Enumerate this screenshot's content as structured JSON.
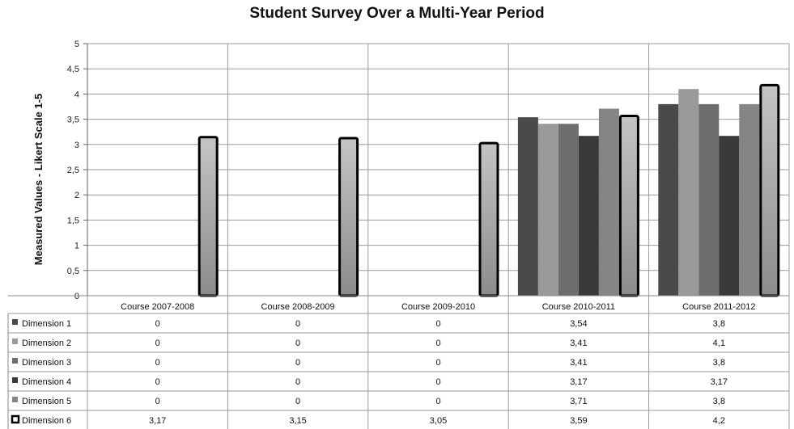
{
  "chart_data": {
    "type": "bar",
    "title": "Student Survey Over a Multi-Year Period",
    "ylabel": "Measured Values - Likert Scale 1-5",
    "xlabel": "",
    "ylim": [
      0,
      5
    ],
    "yticks": [
      "0",
      "0,5",
      "1",
      "1,5",
      "2",
      "2,5",
      "3",
      "3,5",
      "4",
      "4,5",
      "5"
    ],
    "grid": true,
    "legend": "data-table-left",
    "categories": [
      "Course 2007-2008",
      "Course 2008-2009",
      "Course 2009-2010",
      "Course 2010-2011",
      "Course 2011-2012"
    ],
    "series": [
      {
        "name": "Dimension 1",
        "color": "#4a4a4a",
        "values": [
          0,
          0,
          0,
          3.54,
          3.8
        ],
        "labels": [
          "0",
          "0",
          "0",
          "3,54",
          "3,8"
        ]
      },
      {
        "name": "Dimension 2",
        "color": "#9a9a9a",
        "values": [
          0,
          0,
          0,
          3.41,
          4.1
        ],
        "labels": [
          "0",
          "0",
          "0",
          "3,41",
          "4,1"
        ]
      },
      {
        "name": "Dimension 3",
        "color": "#6e6e6e",
        "values": [
          0,
          0,
          0,
          3.41,
          3.8
        ],
        "labels": [
          "0",
          "0",
          "0",
          "3,41",
          "3,8"
        ]
      },
      {
        "name": "Dimension 4",
        "color": "#3a3a3a",
        "values": [
          0,
          0,
          0,
          3.17,
          3.17
        ],
        "labels": [
          "0",
          "0",
          "0",
          "3,17",
          "3,17"
        ]
      },
      {
        "name": "Dimension 5",
        "color": "#858585",
        "values": [
          0,
          0,
          0,
          3.71,
          3.8
        ],
        "labels": [
          "0",
          "0",
          "0",
          "3,71",
          "3,8"
        ]
      },
      {
        "name": "Dimension 6",
        "color": "#a8a8a8",
        "outline": "#000000",
        "values": [
          3.17,
          3.15,
          3.05,
          3.59,
          4.2
        ],
        "labels": [
          "3,17",
          "3,15",
          "3,05",
          "3,59",
          "4,2"
        ]
      }
    ]
  }
}
